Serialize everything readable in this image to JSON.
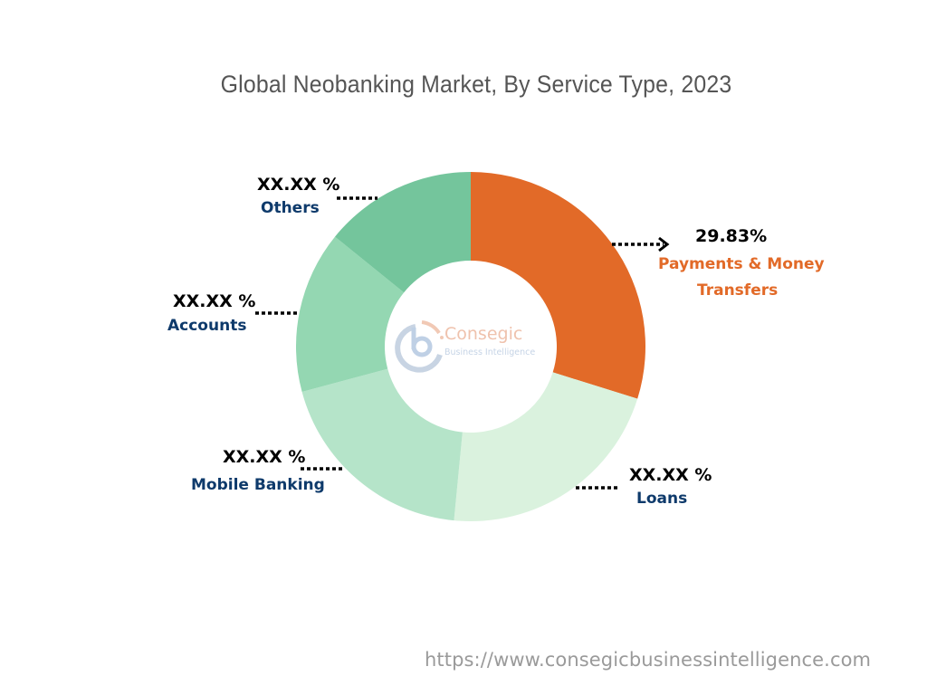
{
  "title": "Global Neobanking Market, By Service Type, 2023",
  "watermark": {
    "brand": "Consegic",
    "tagline": "Business Intelligence"
  },
  "footer_url": "https://www.consegicbusinessintelligence.com",
  "labels": {
    "payments": {
      "value": "29.83%",
      "name_line1": "Payments & Money",
      "name_line2": "Transfers"
    },
    "loans": {
      "value": "XX.XX %",
      "name": "Loans"
    },
    "mobile": {
      "value": "XX.XX %",
      "name": "Mobile Banking"
    },
    "accounts": {
      "value": "XX.XX %",
      "name": "Accounts"
    },
    "others": {
      "value": "XX.XX %",
      "name": "Others"
    }
  },
  "colors": {
    "payments": "#e26a28",
    "loans": "#daf2de",
    "mobile": "#b5e4c9",
    "accounts": "#94d7b2",
    "others": "#74c59c",
    "value_text": "#000000",
    "category_text": "#0e3a6b",
    "highlight_text": "#e26a28",
    "title_text": "#555555"
  },
  "chart_data": {
    "type": "pie",
    "subtype": "donut",
    "title": "Global Neobanking Market, By Service Type, 2023",
    "categories": [
      "Payments & Money Transfers",
      "Loans",
      "Mobile Banking",
      "Accounts",
      "Others"
    ],
    "values": [
      29.83,
      21.7,
      19.3,
      15.0,
      14.17
    ],
    "value_labels": [
      "29.83%",
      "XX.XX %",
      "XX.XX %",
      "XX.XX %",
      "XX.XX %"
    ],
    "note": "Only Payments & Money Transfers value is shown (29.83%); other values are masked as XX.XX % and estimated from slice angles.",
    "start_angle_deg": 0,
    "direction": "clockwise",
    "legend": "none (callout labels)"
  }
}
